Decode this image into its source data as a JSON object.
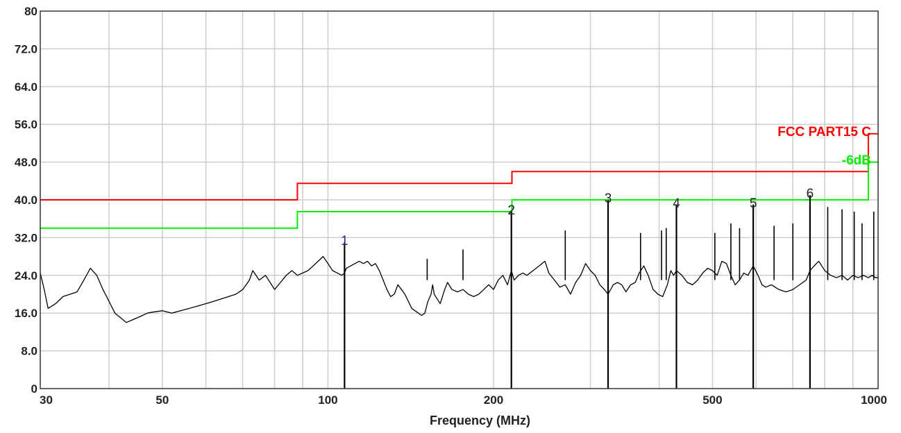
{
  "chart_data": {
    "type": "line",
    "xlabel": "Frequency (MHz)",
    "ylabel": "",
    "xscale": "log",
    "xlim": [
      30,
      1000
    ],
    "ylim": [
      0,
      80
    ],
    "grid": true,
    "xticks": [
      {
        "value": 30,
        "label": "30"
      },
      {
        "value": 50,
        "label": "50"
      },
      {
        "value": 100,
        "label": "100"
      },
      {
        "value": 200,
        "label": "200"
      },
      {
        "value": 500,
        "label": "500"
      },
      {
        "value": 1000,
        "label": "1000"
      }
    ],
    "yticks": [
      {
        "value": 0,
        "label": "0"
      },
      {
        "value": 8,
        "label": "8.0"
      },
      {
        "value": 16,
        "label": "16.0"
      },
      {
        "value": 24,
        "label": "24.0"
      },
      {
        "value": 32,
        "label": "32.0"
      },
      {
        "value": 40,
        "label": "40.0"
      },
      {
        "value": 48,
        "label": "48.0"
      },
      {
        "value": 56,
        "label": "56.0"
      },
      {
        "value": 64,
        "label": "64.0"
      },
      {
        "value": 72,
        "label": "72.0"
      },
      {
        "value": 80,
        "label": "80"
      }
    ],
    "limit_lines": [
      {
        "name": "FCC PART15 C",
        "color": "#ff0000",
        "points": [
          [
            30,
            40
          ],
          [
            88,
            40
          ],
          [
            88,
            43.5
          ],
          [
            216,
            43.5
          ],
          [
            216,
            46
          ],
          [
            960,
            46
          ],
          [
            960,
            54
          ],
          [
            1000,
            54
          ]
        ]
      },
      {
        "name": "-6dB",
        "color": "#00ee00",
        "points": [
          [
            30,
            34
          ],
          [
            88,
            34
          ],
          [
            88,
            37.5
          ],
          [
            216,
            37.5
          ],
          [
            216,
            40
          ],
          [
            960,
            40
          ],
          [
            960,
            48
          ],
          [
            1000,
            48
          ]
        ]
      }
    ],
    "markers": [
      {
        "label": "1",
        "freq": 107.2,
        "level": 31.0,
        "color": "#3c1e8c"
      },
      {
        "label": "2",
        "freq": 215.5,
        "level": 37.5,
        "color": "#222222"
      },
      {
        "label": "3",
        "freq": 323.0,
        "level": 40.0,
        "color": "#222222"
      },
      {
        "label": "4",
        "freq": 430.0,
        "level": 39.0,
        "color": "#222222"
      },
      {
        "label": "5",
        "freq": 593.0,
        "level": 39.0,
        "color": "#222222"
      },
      {
        "label": "6",
        "freq": 752.0,
        "level": 41.0,
        "color": "#222222"
      }
    ],
    "series": [
      {
        "color": "#000000",
        "points": [
          [
            30,
            24.5
          ],
          [
            30.5,
            21
          ],
          [
            31,
            17
          ],
          [
            32,
            18
          ],
          [
            33,
            19.5
          ],
          [
            34,
            20
          ],
          [
            35,
            20.5
          ],
          [
            36,
            23
          ],
          [
            37,
            25.5
          ],
          [
            38,
            24
          ],
          [
            39,
            21
          ],
          [
            40,
            18.5
          ],
          [
            41,
            16
          ],
          [
            42,
            15
          ],
          [
            43,
            14
          ],
          [
            44,
            14.5
          ],
          [
            45,
            15
          ],
          [
            46,
            15.5
          ],
          [
            47,
            16
          ],
          [
            48,
            16.2
          ],
          [
            50,
            16.5
          ],
          [
            52,
            16
          ],
          [
            54,
            16.5
          ],
          [
            56,
            17
          ],
          [
            58,
            17.5
          ],
          [
            60,
            18
          ],
          [
            62,
            18.5
          ],
          [
            64,
            19
          ],
          [
            66,
            19.5
          ],
          [
            68,
            20
          ],
          [
            70,
            21
          ],
          [
            72,
            23
          ],
          [
            73,
            25
          ],
          [
            74,
            24
          ],
          [
            75,
            23
          ],
          [
            77,
            24
          ],
          [
            79,
            22
          ],
          [
            80,
            21
          ],
          [
            82,
            22.5
          ],
          [
            84,
            24
          ],
          [
            86,
            25
          ],
          [
            88,
            24
          ],
          [
            90,
            24.5
          ],
          [
            92,
            25
          ],
          [
            94,
            26
          ],
          [
            96,
            27
          ],
          [
            98,
            28
          ],
          [
            100,
            26.5
          ],
          [
            102,
            25
          ],
          [
            104,
            24.5
          ],
          [
            106,
            24
          ],
          [
            107.2,
            24.5
          ],
          [
            108,
            25.5
          ],
          [
            110,
            26
          ],
          [
            112,
            26.5
          ],
          [
            114,
            27
          ],
          [
            116,
            26.5
          ],
          [
            118,
            27
          ],
          [
            120,
            26
          ],
          [
            122,
            26.5
          ],
          [
            124,
            25
          ],
          [
            126,
            23
          ],
          [
            128,
            21
          ],
          [
            130,
            19.5
          ],
          [
            132,
            20
          ],
          [
            134,
            22
          ],
          [
            136,
            21
          ],
          [
            138,
            20
          ],
          [
            140,
            18.5
          ],
          [
            142,
            17
          ],
          [
            144,
            16.5
          ],
          [
            146,
            16
          ],
          [
            148,
            15.5
          ],
          [
            150,
            16
          ],
          [
            152,
            18.5
          ],
          [
            154,
            20
          ],
          [
            155,
            22
          ],
          [
            156,
            20
          ],
          [
            158,
            19
          ],
          [
            160,
            18
          ],
          [
            163,
            21
          ],
          [
            165,
            22.5
          ],
          [
            168,
            21
          ],
          [
            172,
            20.5
          ],
          [
            176,
            21
          ],
          [
            180,
            20
          ],
          [
            184,
            19.5
          ],
          [
            188,
            20
          ],
          [
            192,
            21
          ],
          [
            196,
            22
          ],
          [
            200,
            21
          ],
          [
            204,
            23
          ],
          [
            208,
            24
          ],
          [
            212,
            22
          ],
          [
            215.5,
            25
          ],
          [
            218,
            23
          ],
          [
            222,
            24
          ],
          [
            226,
            24.5
          ],
          [
            230,
            24
          ],
          [
            236,
            25
          ],
          [
            242,
            26
          ],
          [
            248,
            27
          ],
          [
            252,
            24.5
          ],
          [
            258,
            23
          ],
          [
            264,
            21.5
          ],
          [
            270,
            22
          ],
          [
            276,
            20
          ],
          [
            282,
            22.5
          ],
          [
            288,
            24
          ],
          [
            294,
            26.5
          ],
          [
            300,
            25
          ],
          [
            306,
            24
          ],
          [
            312,
            22
          ],
          [
            318,
            21
          ],
          [
            323,
            20
          ],
          [
            330,
            22
          ],
          [
            336,
            22.5
          ],
          [
            342,
            22
          ],
          [
            348,
            20.5
          ],
          [
            355,
            22
          ],
          [
            362,
            22.5
          ],
          [
            368,
            24.5
          ],
          [
            375,
            26
          ],
          [
            382,
            24
          ],
          [
            390,
            21
          ],
          [
            398,
            20
          ],
          [
            406,
            19.5
          ],
          [
            414,
            22
          ],
          [
            420,
            25
          ],
          [
            425,
            24
          ],
          [
            430,
            25
          ],
          [
            440,
            24
          ],
          [
            450,
            22.5
          ],
          [
            460,
            22
          ],
          [
            470,
            23
          ],
          [
            480,
            24.5
          ],
          [
            490,
            25.5
          ],
          [
            500,
            25
          ],
          [
            510,
            24
          ],
          [
            520,
            27
          ],
          [
            530,
            26.5
          ],
          [
            540,
            24
          ],
          [
            550,
            22
          ],
          [
            560,
            23
          ],
          [
            570,
            24.5
          ],
          [
            580,
            24
          ],
          [
            593,
            26
          ],
          [
            605,
            24
          ],
          [
            615,
            22
          ],
          [
            625,
            21.5
          ],
          [
            640,
            22
          ],
          [
            660,
            21
          ],
          [
            680,
            20.5
          ],
          [
            700,
            21
          ],
          [
            720,
            22
          ],
          [
            740,
            23
          ],
          [
            752,
            25
          ],
          [
            765,
            26
          ],
          [
            780,
            27
          ],
          [
            800,
            25
          ],
          [
            820,
            24
          ],
          [
            840,
            23.5
          ],
          [
            860,
            24
          ],
          [
            880,
            23
          ],
          [
            900,
            24
          ],
          [
            920,
            23.5
          ],
          [
            940,
            24
          ],
          [
            960,
            23.5
          ],
          [
            975,
            24
          ],
          [
            990,
            23.5
          ],
          [
            1000,
            23.5
          ]
        ]
      }
    ],
    "spikes": [
      {
        "freq": 151.5,
        "level": 27.5
      },
      {
        "freq": 176.0,
        "level": 29.5
      },
      {
        "freq": 270.0,
        "level": 33.5
      },
      {
        "freq": 370.0,
        "level": 33.0
      },
      {
        "freq": 404.0,
        "level": 33.5
      },
      {
        "freq": 412.0,
        "level": 34.0
      },
      {
        "freq": 505.0,
        "level": 33.0
      },
      {
        "freq": 540.0,
        "level": 35.0
      },
      {
        "freq": 560.0,
        "level": 34.0
      },
      {
        "freq": 647.0,
        "level": 34.5
      },
      {
        "freq": 700.0,
        "level": 35.0
      },
      {
        "freq": 810.0,
        "level": 38.5
      },
      {
        "freq": 860.0,
        "level": 38.0
      },
      {
        "freq": 905.0,
        "level": 37.5
      },
      {
        "freq": 935.0,
        "level": 35.0
      },
      {
        "freq": 982.0,
        "level": 37.5
      }
    ]
  }
}
